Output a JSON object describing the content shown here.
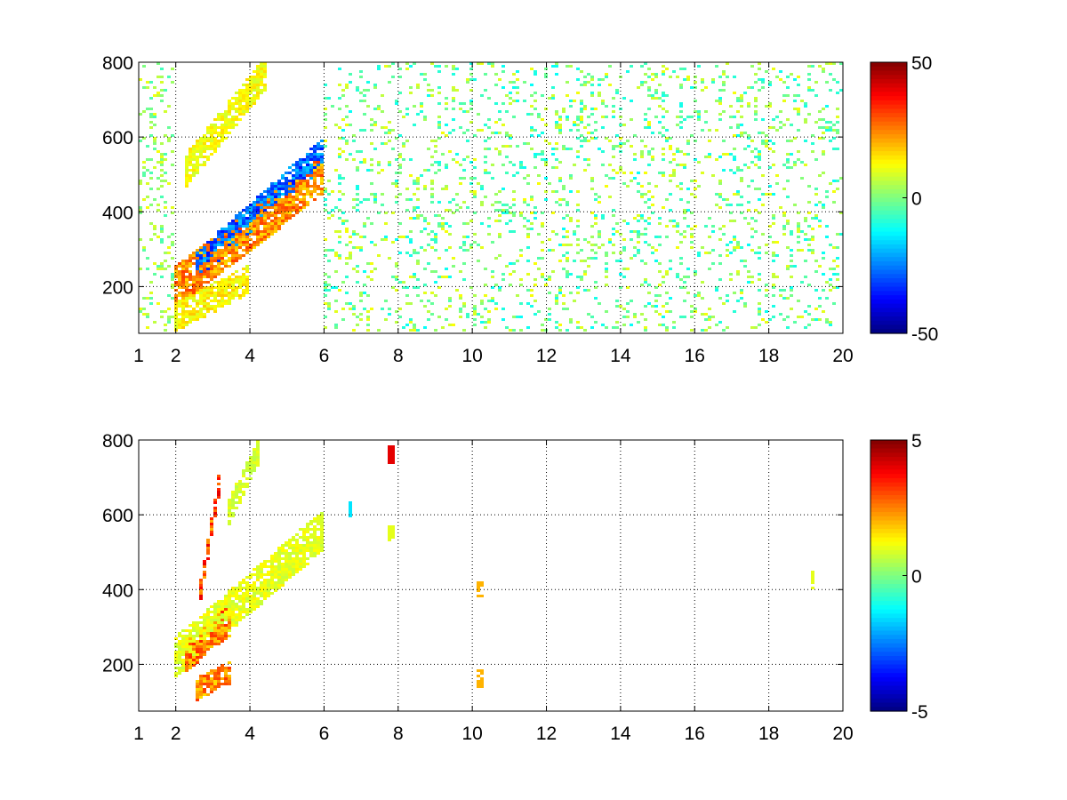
{
  "chart_data": [
    {
      "type": "heatmap",
      "xlim": [
        1,
        20
      ],
      "ylim": [
        75,
        800
      ],
      "xticks": [
        1,
        2,
        4,
        6,
        8,
        10,
        12,
        14,
        16,
        18,
        20
      ],
      "xtick_labels": [
        "1",
        "2",
        "4",
        "6",
        "8",
        "10",
        "12",
        "14",
        "16",
        "18",
        "20"
      ],
      "yticks": [
        200,
        400,
        600,
        800
      ],
      "ytick_labels": [
        "200",
        "400",
        "600",
        "800"
      ],
      "grid": true,
      "grid_style": "dotted",
      "colormap": "jet",
      "clim": [
        -50,
        50
      ],
      "colorbar_ticks": [
        50,
        0,
        -50
      ],
      "colorbar_labels": [
        "50",
        "0",
        "-50"
      ],
      "features": [
        {
          "kind": "band",
          "x_start": 2.0,
          "x_end": 6.0,
          "y_at_start": 200,
          "y_at_end": 500,
          "width": 110,
          "value": 28
        },
        {
          "kind": "band",
          "x_start": 2.5,
          "x_end": 6.0,
          "y_at_start": 250,
          "y_at_end": 560,
          "width": 80,
          "value": -32
        },
        {
          "kind": "band",
          "x_start": 2.2,
          "x_end": 4.5,
          "y_at_start": 500,
          "y_at_end": 780,
          "width": 90,
          "value": 14
        },
        {
          "kind": "band",
          "x_start": 2.0,
          "x_end": 4.0,
          "y_at_start": 120,
          "y_at_end": 220,
          "width": 80,
          "value": 16
        },
        {
          "kind": "scatter",
          "x_range": [
            6.0,
            20.0
          ],
          "y_range": [
            75,
            800
          ],
          "density": 0.28,
          "value_range": [
            -12,
            12
          ]
        },
        {
          "kind": "scatter",
          "x_range": [
            1.0,
            2.0
          ],
          "y_range": [
            75,
            800
          ],
          "density": 0.35,
          "value_range": [
            -6,
            12
          ]
        }
      ]
    },
    {
      "type": "heatmap",
      "xlim": [
        1,
        20
      ],
      "ylim": [
        75,
        800
      ],
      "xticks": [
        1,
        2,
        4,
        6,
        8,
        10,
        12,
        14,
        16,
        18,
        20
      ],
      "xtick_labels": [
        "1",
        "2",
        "4",
        "6",
        "8",
        "10",
        "12",
        "14",
        "16",
        "18",
        "20"
      ],
      "yticks": [
        200,
        400,
        600,
        800
      ],
      "ytick_labels": [
        "200",
        "400",
        "600",
        "800"
      ],
      "grid": true,
      "grid_style": "dotted",
      "colormap": "jet",
      "clim": [
        -5,
        5
      ],
      "colorbar_ticks": [
        5,
        0,
        -5
      ],
      "colorbar_labels": [
        "5",
        "0",
        "-5"
      ],
      "features": [
        {
          "kind": "band",
          "x_start": 2.0,
          "x_end": 6.0,
          "y_at_start": 220,
          "y_at_end": 560,
          "width": 110,
          "value": 1.2
        },
        {
          "kind": "band",
          "x_start": 2.2,
          "x_end": 3.5,
          "y_at_start": 220,
          "y_at_end": 320,
          "width": 90,
          "value": 3.0
        },
        {
          "kind": "band",
          "x_start": 2.5,
          "x_end": 3.5,
          "y_at_start": 130,
          "y_at_end": 180,
          "width": 60,
          "value": 2.8
        },
        {
          "kind": "band",
          "x_start": 3.4,
          "x_end": 4.3,
          "y_at_start": 600,
          "y_at_end": 780,
          "width": 70,
          "value": 1.0
        },
        {
          "kind": "band",
          "x_start": 2.6,
          "x_end": 3.2,
          "y_at_start": 350,
          "y_at_end": 700,
          "width": 60,
          "value": 3.5
        },
        {
          "kind": "spot",
          "x": 7.8,
          "y": 550,
          "value": 1.0
        },
        {
          "kind": "spot",
          "x": 7.8,
          "y": 760,
          "value": 4.0
        },
        {
          "kind": "spot",
          "x": 10.2,
          "y": 400,
          "value": 2.0
        },
        {
          "kind": "spot",
          "x": 10.2,
          "y": 160,
          "value": 2.0
        },
        {
          "kind": "spot",
          "x": 6.7,
          "y": 620,
          "value": -1.5
        },
        {
          "kind": "spot",
          "x": 19.2,
          "y": 425,
          "value": 1.0
        }
      ]
    }
  ]
}
